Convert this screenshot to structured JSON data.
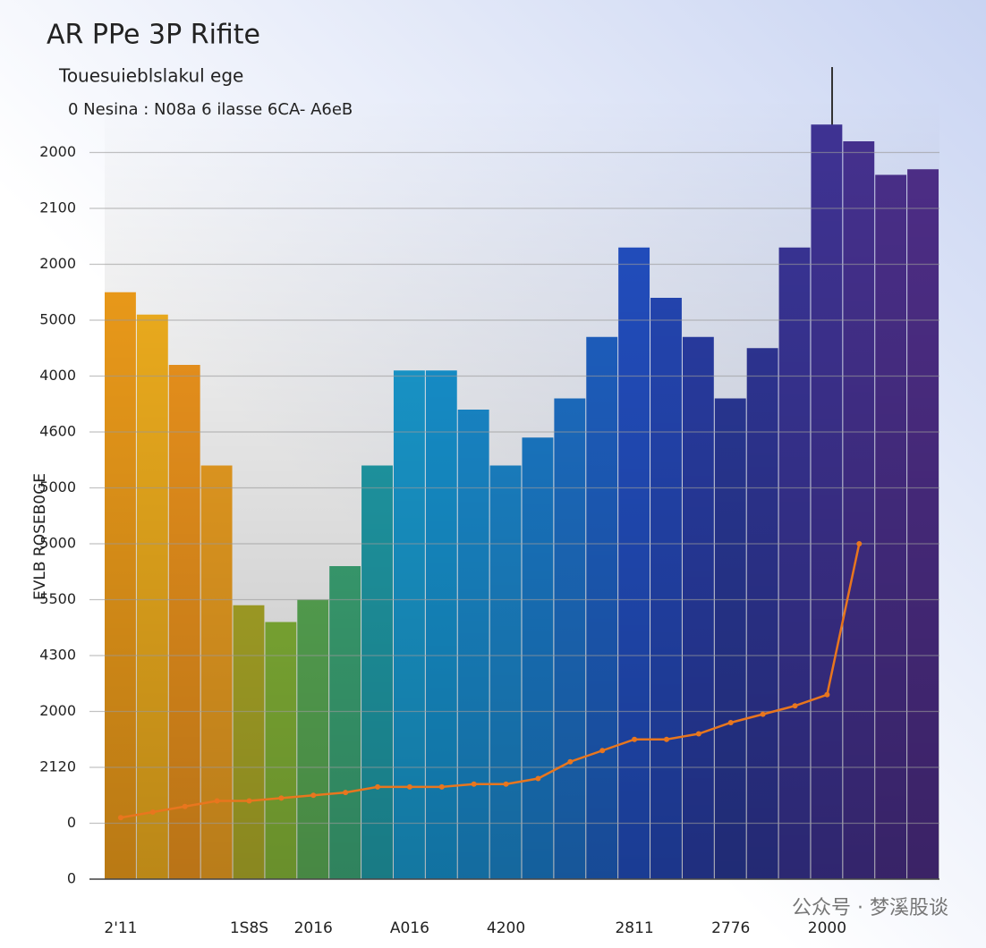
{
  "chart_data": {
    "type": "bar",
    "title": "AR PPe 3P Rifite",
    "subtitle": "Touesuieblslakul ege",
    "legend_text": "0  Nesina : N08a 6 ilasse 6CA- A6eB",
    "y_label": "EVLB ROSEB0GE",
    "watermark": "公众号 · 梦溪股谈",
    "categories": [
      "2'11",
      null,
      null,
      null,
      "1S8S",
      null,
      "2016",
      null,
      null,
      "A016",
      null,
      null,
      "4200",
      null,
      null,
      null,
      "2811",
      null,
      null,
      "2776",
      null,
      null,
      "2000",
      null,
      null,
      null
    ],
    "values": [
      10.5,
      10.1,
      9.2,
      7.4,
      4.9,
      4.6,
      5.0,
      5.6,
      7.4,
      9.1,
      9.1,
      8.4,
      7.4,
      7.9,
      8.6,
      9.7,
      11.3,
      10.4,
      9.7,
      8.6,
      9.5,
      11.3,
      13.5,
      13.2,
      12.6,
      12.7
    ],
    "colors": [
      "#f7a21b",
      "#f9b51f",
      "#f79a1e",
      "#f6a623",
      "#b7b42a",
      "#8cbf3a",
      "#5fb55a",
      "#3fae7c",
      "#21a3b0",
      "#1a9fd6",
      "#1797d6",
      "#1a8fd4",
      "#1c8ad2",
      "#1b7fd0",
      "#1e73cc",
      "#1f63c8",
      "#2350c4",
      "#2548b8",
      "#2a3ea8",
      "#2b3a9c",
      "#30379a",
      "#3a3598",
      "#3f3394",
      "#45318f",
      "#4a2f8a",
      "#4e2e88"
    ],
    "line": {
      "color": "#e8761e",
      "values": [
        1.1,
        1.2,
        1.3,
        1.4,
        1.4,
        1.45,
        1.5,
        1.55,
        1.65,
        1.65,
        1.65,
        1.7,
        1.7,
        1.8,
        2.1,
        2.3,
        2.5,
        2.5,
        2.6,
        2.8,
        2.95,
        3.1,
        3.3,
        6.0,
        null,
        null
      ]
    },
    "ylim": [
      0,
      14
    ],
    "yticks": [
      {
        "value": 0,
        "label": "0"
      },
      {
        "value": 1,
        "label": "0"
      },
      {
        "value": 2,
        "label": "2120"
      },
      {
        "value": 3,
        "label": "2000"
      },
      {
        "value": 4,
        "label": "4300"
      },
      {
        "value": 5,
        "label": "5500"
      },
      {
        "value": 6,
        "label": "5000"
      },
      {
        "value": 7,
        "label": "5000"
      },
      {
        "value": 8,
        "label": "4600"
      },
      {
        "value": 9,
        "label": "4000"
      },
      {
        "value": 10,
        "label": "5000"
      },
      {
        "value": 11,
        "label": "2000"
      },
      {
        "value": 12,
        "label": "2100"
      },
      {
        "value": 13,
        "label": "2000"
      }
    ],
    "grid": true
  }
}
